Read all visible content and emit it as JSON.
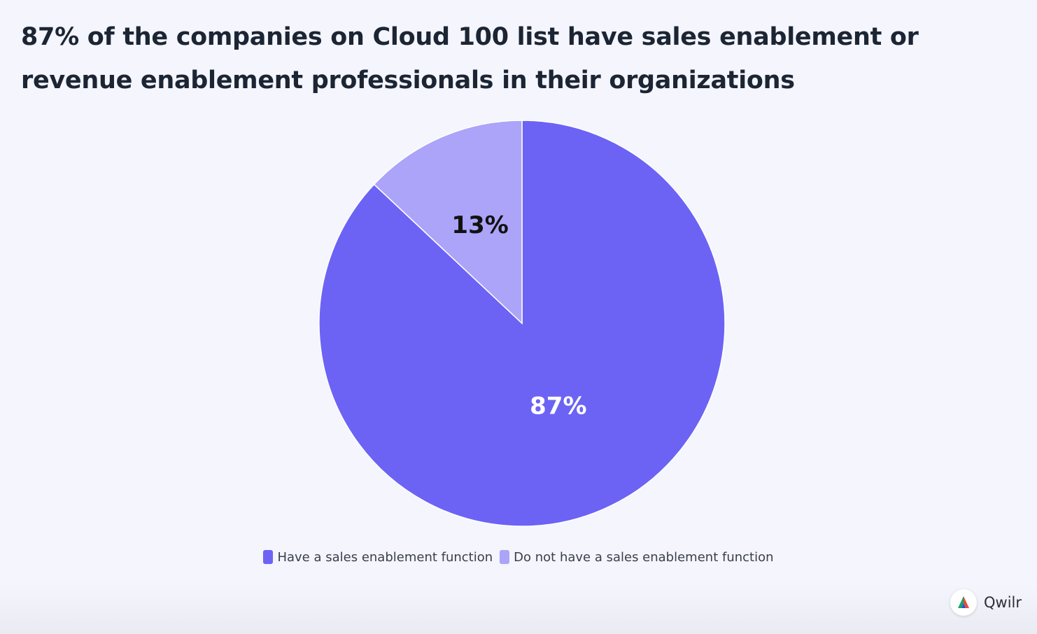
{
  "title": "87% of the companies on Cloud 100 list have sales enablement or revenue enablement professionals in their organizations",
  "chart_data": {
    "type": "pie",
    "categories": [
      "Have a sales enablement function",
      "Do not have a sales enablement function"
    ],
    "values": [
      87,
      13
    ],
    "data_labels": [
      "87%",
      "13%"
    ],
    "colors": [
      "#6c63f5",
      "#aba4f9"
    ],
    "label_colors": [
      "#ffffff",
      "#111111"
    ],
    "start_angle_direction": "clockwise from top",
    "legend_position": "bottom-center"
  },
  "legend": {
    "items": [
      {
        "label": "Have a sales enablement function",
        "color": "#6c63f5"
      },
      {
        "label": "Do not have a sales enablement function",
        "color": "#aba4f9"
      }
    ]
  },
  "brand": {
    "name": "Qwilr",
    "logo_icon": "qwilr-logo-icon"
  }
}
